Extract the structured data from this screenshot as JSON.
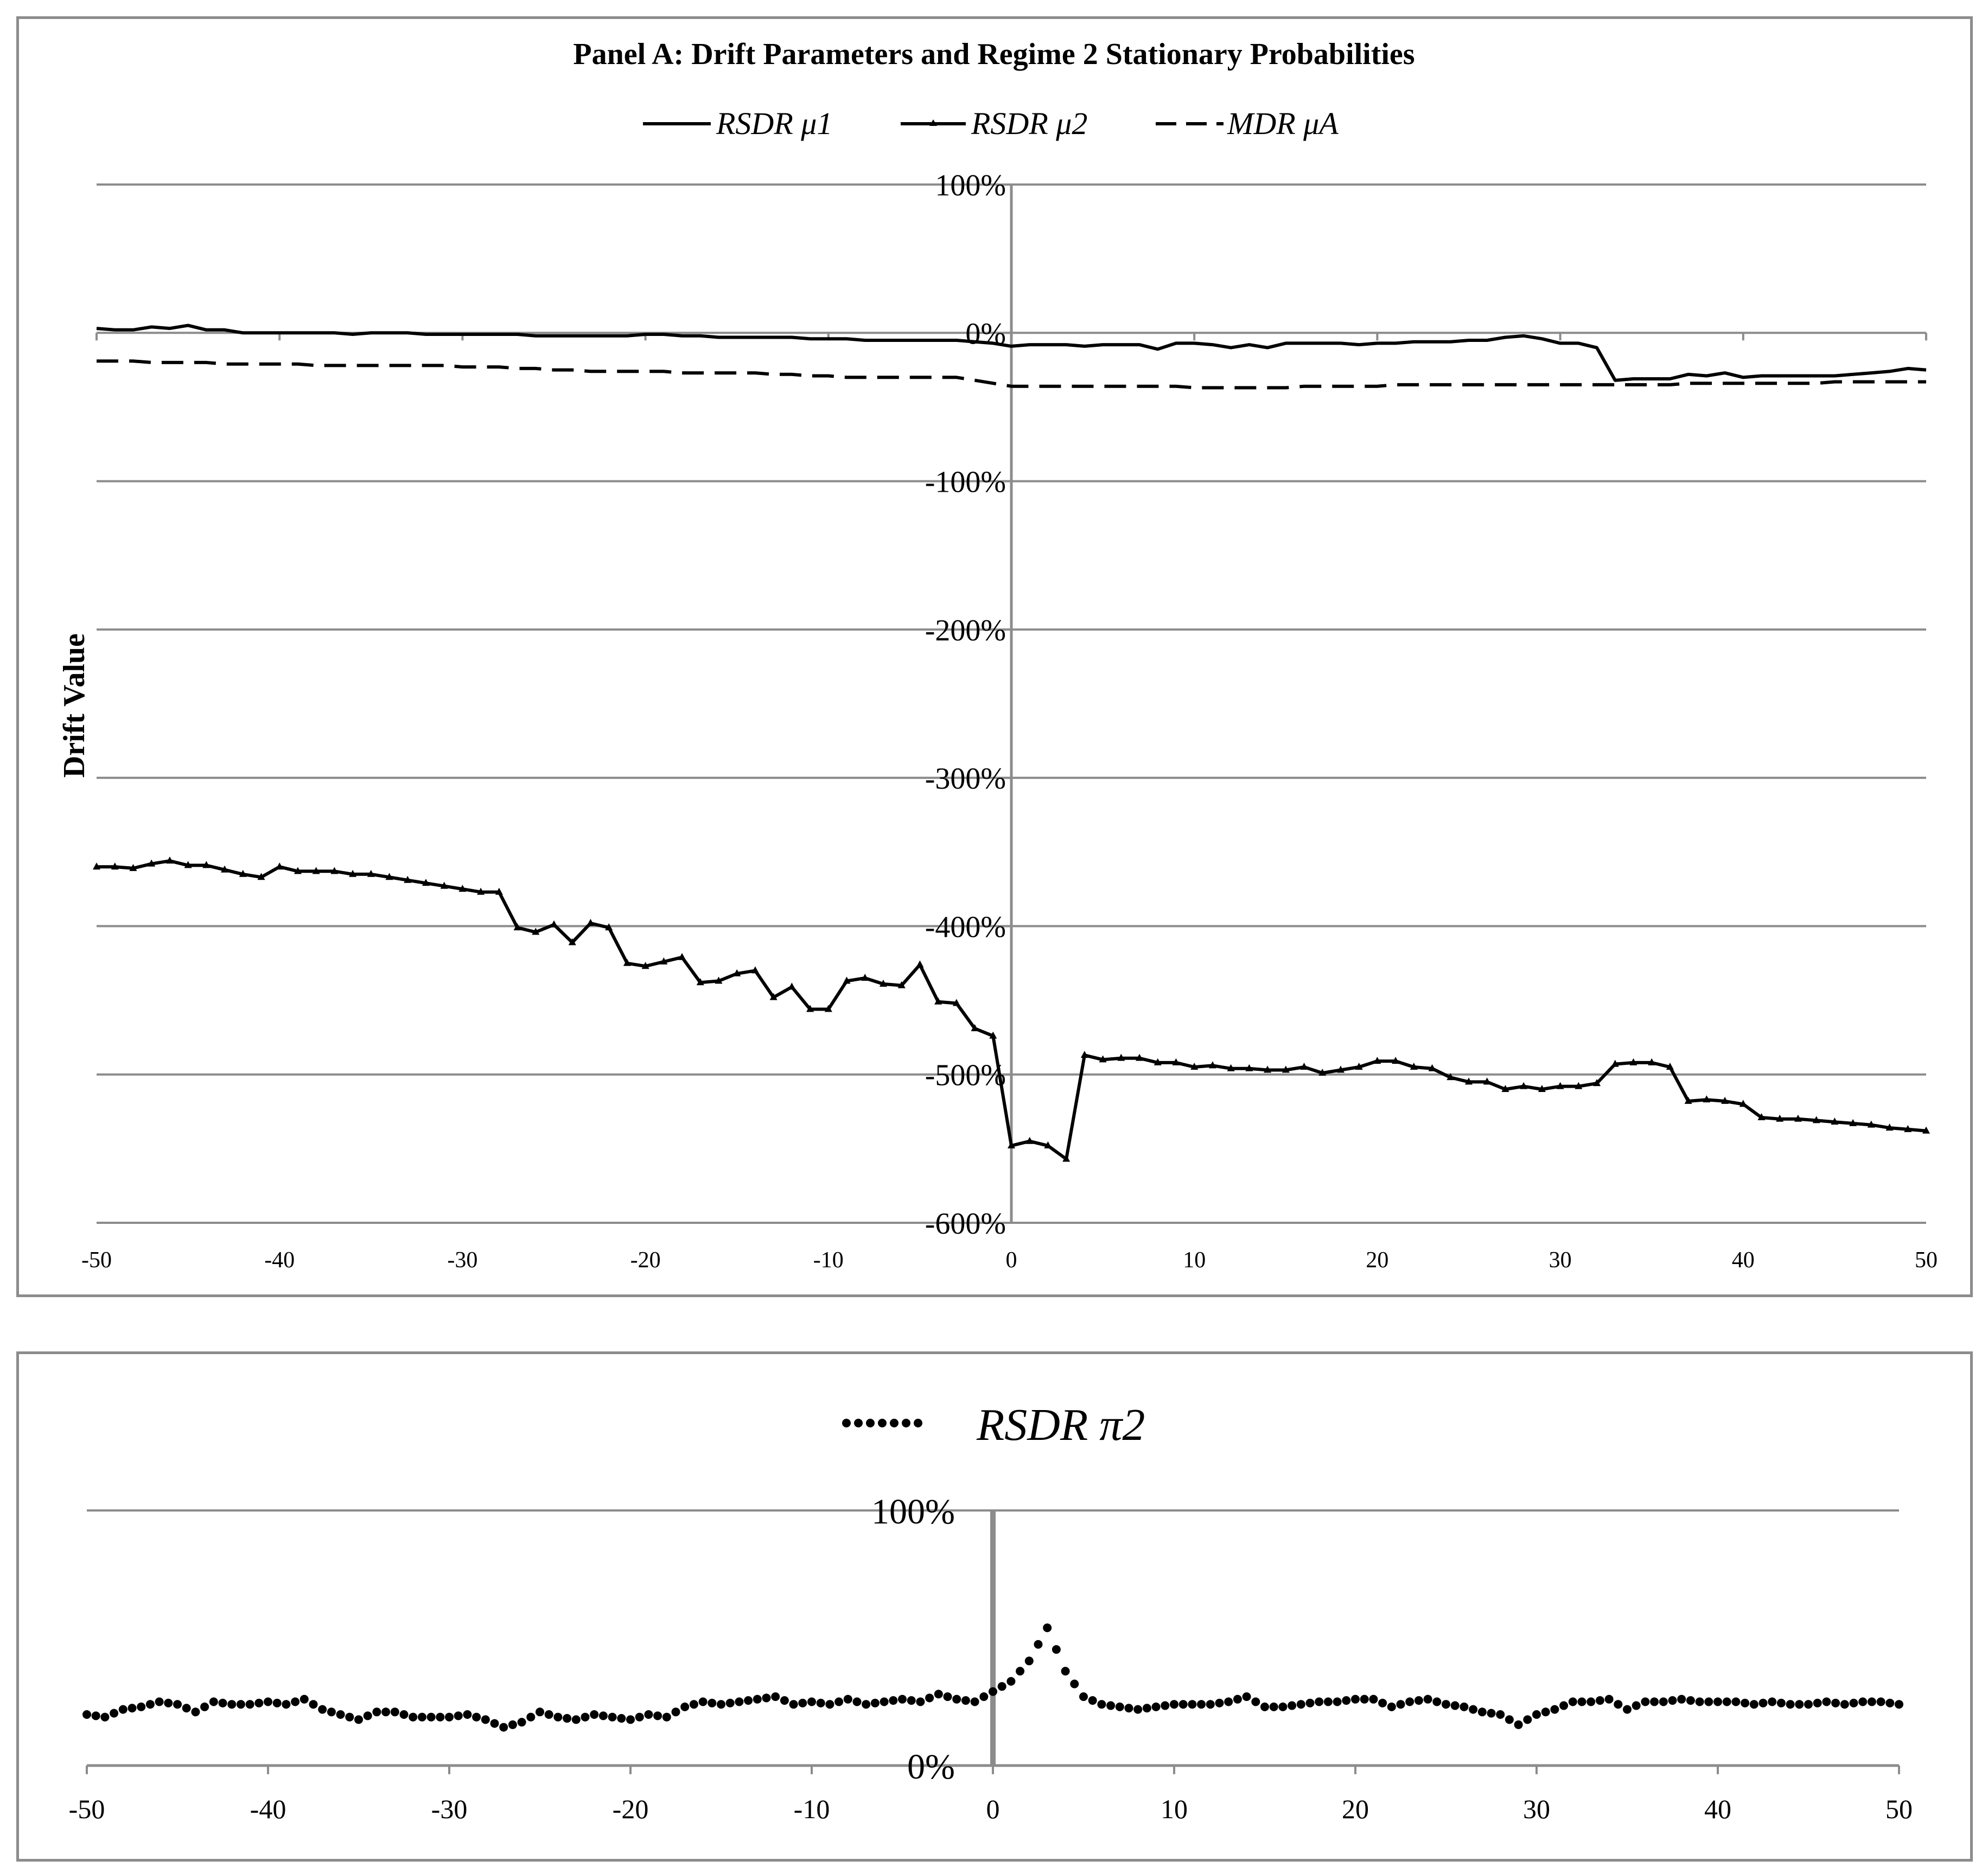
{
  "chart_data": [
    {
      "type": "line",
      "title": "Panel A: Drift Parameters and Regime 2 Stationary Probabilities",
      "xlabel": "",
      "ylabel": "Drift Value",
      "xlim": [
        -50,
        50
      ],
      "ylim": [
        -600,
        100
      ],
      "x_ticks": [
        -50,
        -40,
        -30,
        -20,
        -10,
        0,
        10,
        20,
        30,
        40,
        50
      ],
      "y_ticks": [
        100,
        0,
        -100,
        -200,
        -300,
        -400,
        -500,
        -600
      ],
      "y_tick_labels": [
        "100%",
        "0%",
        "-100%",
        "-200%",
        "-300%",
        "-400%",
        "-500%",
        "-600%"
      ],
      "grid": "horizontal",
      "legend_position": "top",
      "x": [
        -50,
        -49,
        -48,
        -47,
        -46,
        -45,
        -44,
        -43,
        -42,
        -41,
        -40,
        -39,
        -38,
        -37,
        -36,
        -35,
        -34,
        -33,
        -32,
        -31,
        -30,
        -29,
        -28,
        -27,
        -26,
        -25,
        -24,
        -23,
        -22,
        -21,
        -20,
        -19,
        -18,
        -17,
        -16,
        -15,
        -14,
        -13,
        -12,
        -11,
        -10,
        -9,
        -8,
        -7,
        -6,
        -5,
        -4,
        -3,
        -2,
        -1,
        0,
        1,
        2,
        3,
        4,
        5,
        6,
        7,
        8,
        9,
        10,
        11,
        12,
        13,
        14,
        15,
        16,
        17,
        18,
        19,
        20,
        21,
        22,
        23,
        24,
        25,
        26,
        27,
        28,
        29,
        30,
        31,
        32,
        33,
        34,
        35,
        36,
        37,
        38,
        39,
        40,
        41,
        42,
        43,
        44,
        45,
        46,
        47,
        48,
        49,
        50
      ],
      "series": [
        {
          "name": "RSDR μ1",
          "style": "solid",
          "values": [
            3,
            2,
            2,
            4,
            3,
            5,
            2,
            2,
            0,
            0,
            0,
            0,
            0,
            0,
            -1,
            0,
            0,
            0,
            -1,
            -1,
            -1,
            -1,
            -1,
            -1,
            -2,
            -2,
            -2,
            -2,
            -2,
            -2,
            -1,
            -1,
            -2,
            -2,
            -3,
            -3,
            -3,
            -3,
            -3,
            -4,
            -4,
            -4,
            -5,
            -5,
            -5,
            -5,
            -5,
            -5,
            -6,
            -7,
            -9,
            -8,
            -8,
            -8,
            -9,
            -8,
            -8,
            -8,
            -11,
            -7,
            -7,
            -8,
            -10,
            -8,
            -10,
            -7,
            -7,
            -7,
            -7,
            -8,
            -7,
            -7,
            -6,
            -6,
            -6,
            -5,
            -5,
            -3,
            -2,
            -4,
            -7,
            -7,
            -10,
            -32,
            -31,
            -31,
            -31,
            -28,
            -29,
            -27,
            -30,
            -29,
            -29,
            -29,
            -29,
            -29,
            -28,
            -27,
            -26,
            -24,
            -25
          ]
        },
        {
          "name": "RSDR μ2",
          "style": "solid-markers",
          "values": [
            -360,
            -360,
            -361,
            -358,
            -356,
            -359,
            -359,
            -362,
            -365,
            -367,
            -360,
            -363,
            -363,
            -363,
            -365,
            -365,
            -367,
            -369,
            -371,
            -373,
            -375,
            -377,
            -377,
            -401,
            -404,
            -399,
            -411,
            -398,
            -401,
            -425,
            -427,
            -424,
            -421,
            -438,
            -437,
            -432,
            -430,
            -448,
            -441,
            -456,
            -456,
            -437,
            -435,
            -439,
            -440,
            -426,
            -451,
            -452,
            -469,
            -474,
            -548,
            -545,
            -548,
            -557,
            -487,
            -490,
            -489,
            -489,
            -492,
            -492,
            -495,
            -494,
            -496,
            -496,
            -497,
            -497,
            -495,
            -499,
            -497,
            -495,
            -491,
            -491,
            -495,
            -496,
            -502,
            -505,
            -505,
            -510,
            -508,
            -510,
            -508,
            -508,
            -506,
            -493,
            -492,
            -492,
            -495,
            -518,
            -517,
            -518,
            -520,
            -529,
            -530,
            -530,
            -531,
            -532,
            -533,
            -534,
            -536,
            -537,
            -538
          ]
        },
        {
          "name": "MDR μA",
          "style": "dashed",
          "values": [
            -19,
            -19,
            -19,
            -20,
            -20,
            -20,
            -20,
            -21,
            -21,
            -21,
            -21,
            -21,
            -22,
            -22,
            -22,
            -22,
            -22,
            -22,
            -22,
            -22,
            -23,
            -23,
            -23,
            -24,
            -24,
            -25,
            -25,
            -26,
            -26,
            -26,
            -26,
            -26,
            -27,
            -27,
            -27,
            -27,
            -27,
            -28,
            -28,
            -29,
            -29,
            -30,
            -30,
            -30,
            -30,
            -30,
            -30,
            -30,
            -32,
            -34,
            -36,
            -36,
            -36,
            -36,
            -36,
            -36,
            -36,
            -36,
            -36,
            -36,
            -37,
            -37,
            -37,
            -37,
            -37,
            -37,
            -36,
            -36,
            -36,
            -36,
            -36,
            -35,
            -35,
            -35,
            -35,
            -35,
            -35,
            -35,
            -35,
            -35,
            -35,
            -35,
            -35,
            -35,
            -35,
            -35,
            -35,
            -34,
            -34,
            -34,
            -34,
            -34,
            -34,
            -34,
            -34,
            -33,
            -33,
            -33,
            -33,
            -33,
            -33
          ]
        }
      ]
    },
    {
      "type": "line",
      "title": "",
      "xlabel": "",
      "ylabel": "",
      "xlim": [
        -50,
        50
      ],
      "ylim": [
        0,
        100
      ],
      "x_ticks": [
        -50,
        -40,
        -30,
        -20,
        -10,
        0,
        10,
        20,
        30,
        40,
        50
      ],
      "y_ticks": [
        100,
        0
      ],
      "y_tick_labels": [
        "100%",
        "0%"
      ],
      "grid": "horizontal",
      "legend_position": "top",
      "x": [
        -50,
        -49,
        -48,
        -47,
        -46,
        -45,
        -44,
        -43,
        -42,
        -41,
        -40,
        -39,
        -38,
        -37,
        -36,
        -35,
        -34,
        -33,
        -32,
        -31,
        -30,
        -29,
        -28,
        -27,
        -26,
        -25,
        -24,
        -23,
        -22,
        -21,
        -20,
        -19,
        -18,
        -17,
        -16,
        -15,
        -14,
        -13,
        -12,
        -11,
        -10,
        -9,
        -8,
        -7,
        -6,
        -5,
        -4,
        -3,
        -2,
        -1,
        0,
        1,
        2,
        3,
        4,
        5,
        6,
        7,
        8,
        9,
        10,
        11,
        12,
        13,
        14,
        15,
        16,
        17,
        18,
        19,
        20,
        21,
        22,
        23,
        24,
        25,
        26,
        27,
        28,
        29,
        30,
        31,
        32,
        33,
        34,
        35,
        36,
        37,
        38,
        39,
        40,
        41,
        42,
        43,
        44,
        45,
        46,
        47,
        48,
        49,
        50
      ],
      "series": [
        {
          "name": "RSDR π2",
          "style": "dotted",
          "values": [
            20,
            19,
            22,
            23,
            25,
            24,
            21,
            25,
            24,
            24,
            25,
            24,
            26,
            22,
            20,
            18,
            21,
            21,
            19,
            19,
            19,
            20,
            18,
            15,
            17,
            21,
            19,
            18,
            20,
            19,
            18,
            20,
            19,
            23,
            25,
            24,
            25,
            26,
            27,
            24,
            25,
            24,
            26,
            24,
            25,
            26,
            25,
            28,
            26,
            25,
            29,
            33,
            41,
            54,
            37,
            27,
            24,
            23,
            22,
            23,
            24,
            24,
            24,
            25,
            27,
            23,
            23,
            24,
            25,
            25,
            26,
            26,
            23,
            25,
            26,
            24,
            23,
            21,
            20,
            16,
            20,
            22,
            25,
            25,
            26,
            22,
            25,
            25,
            26,
            25,
            25,
            25,
            24,
            25,
            24,
            24,
            25,
            24,
            25,
            25,
            24
          ]
        }
      ]
    }
  ]
}
